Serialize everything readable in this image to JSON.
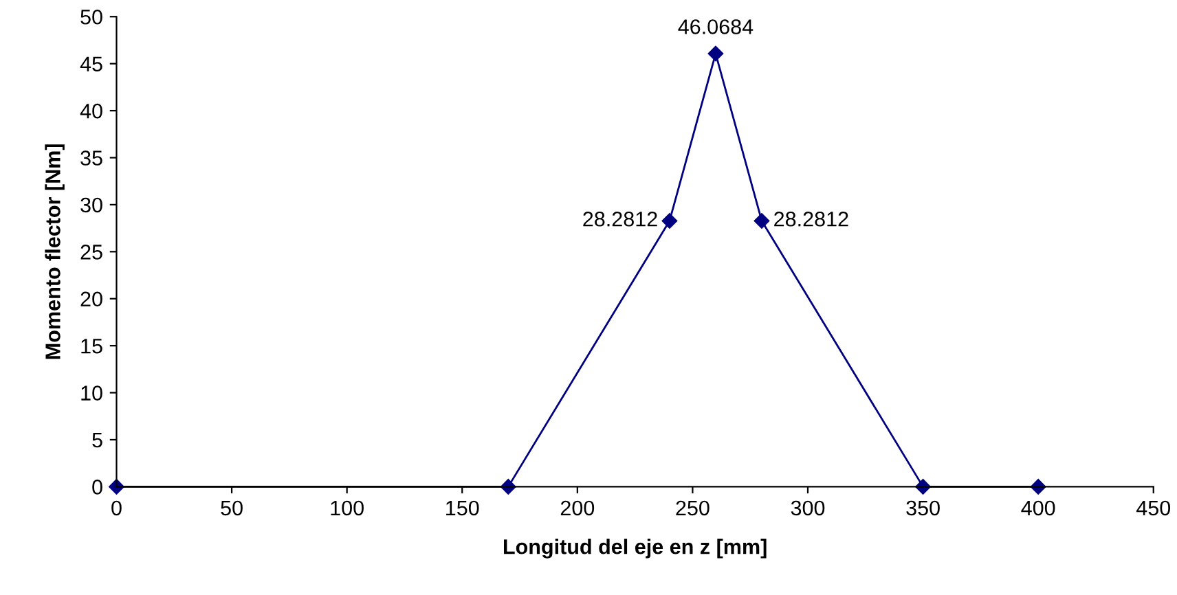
{
  "chart_data": {
    "type": "line",
    "xlabel": "Longitud del eje en z [mm]",
    "ylabel": "Momento flector [Nm]",
    "x": [
      0,
      170,
      240,
      260,
      280,
      350,
      400
    ],
    "series": [
      {
        "color": "#000080",
        "values": [
          0,
          0,
          28.2812,
          46.0684,
          28.2812,
          0,
          0
        ],
        "value_labels": [
          null,
          null,
          "28.2812",
          "46.0684",
          "28.2812",
          null,
          null
        ]
      }
    ],
    "xlim": [
      0,
      450
    ],
    "xticks": [
      0,
      50,
      100,
      150,
      200,
      250,
      300,
      350,
      400,
      450
    ],
    "ylim": [
      0,
      50
    ],
    "yticks": [
      0,
      5,
      10,
      15,
      20,
      25,
      30,
      35,
      40,
      45,
      50
    ],
    "grid": false,
    "legend": false,
    "marker": "diamond",
    "line_style": "solid"
  }
}
